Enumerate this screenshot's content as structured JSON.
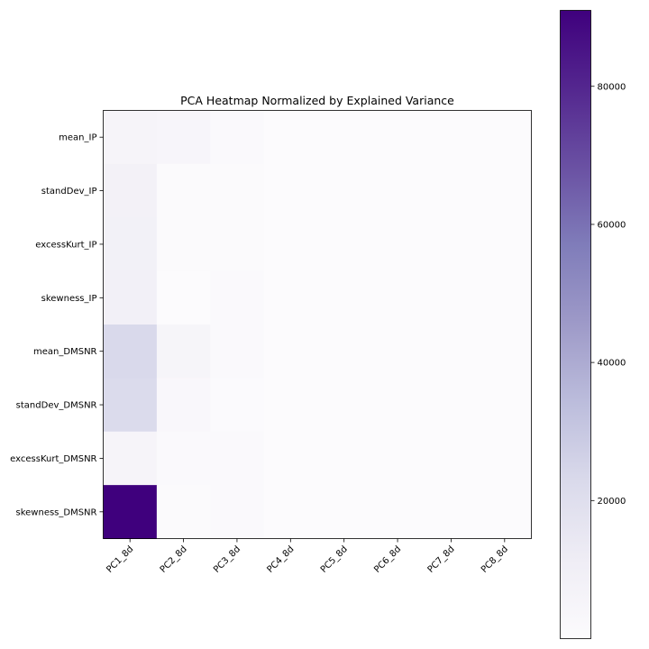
{
  "chart_data": {
    "type": "heatmap",
    "title": "PCA Heatmap Normalized by Explained Variance",
    "x_categories": [
      "PC1_8d",
      "PC2_8d",
      "PC3_8d",
      "PC4_8d",
      "PC5_8d",
      "PC6_8d",
      "PC7_8d",
      "PC8_8d"
    ],
    "y_categories": [
      "mean_IP",
      "standDev_IP",
      "excessKurt_IP",
      "skewness_IP",
      "mean_DMSNR",
      "standDev_DMSNR",
      "excessKurt_DMSNR",
      "skewness_DMSNR"
    ],
    "values": [
      [
        5500,
        4500,
        2000,
        100,
        50,
        30,
        20,
        10
      ],
      [
        8000,
        1200,
        800,
        100,
        50,
        30,
        20,
        10
      ],
      [
        8500,
        1000,
        1200,
        100,
        50,
        30,
        20,
        10
      ],
      [
        9000,
        400,
        1800,
        100,
        50,
        30,
        20,
        10
      ],
      [
        23000,
        5000,
        1600,
        100,
        50,
        30,
        20,
        10
      ],
      [
        22000,
        3000,
        700,
        100,
        50,
        30,
        20,
        10
      ],
      [
        5500,
        2000,
        1400,
        100,
        50,
        30,
        20,
        10
      ],
      [
        91000,
        1200,
        1400,
        100,
        50,
        30,
        20,
        10
      ]
    ],
    "colormap": "Purples",
    "colorbar": {
      "min": 0,
      "max": 91000,
      "ticks": [
        20000,
        40000,
        60000,
        80000
      ],
      "tick_labels": [
        "20000",
        "40000",
        "60000",
        "80000"
      ]
    },
    "colors": [
      "#fcfbfd",
      "#efedf5",
      "#dadaeb",
      "#bcbddc",
      "#9e9ac8",
      "#807dba",
      "#6a51a3",
      "#54278f",
      "#3f007d"
    ]
  }
}
